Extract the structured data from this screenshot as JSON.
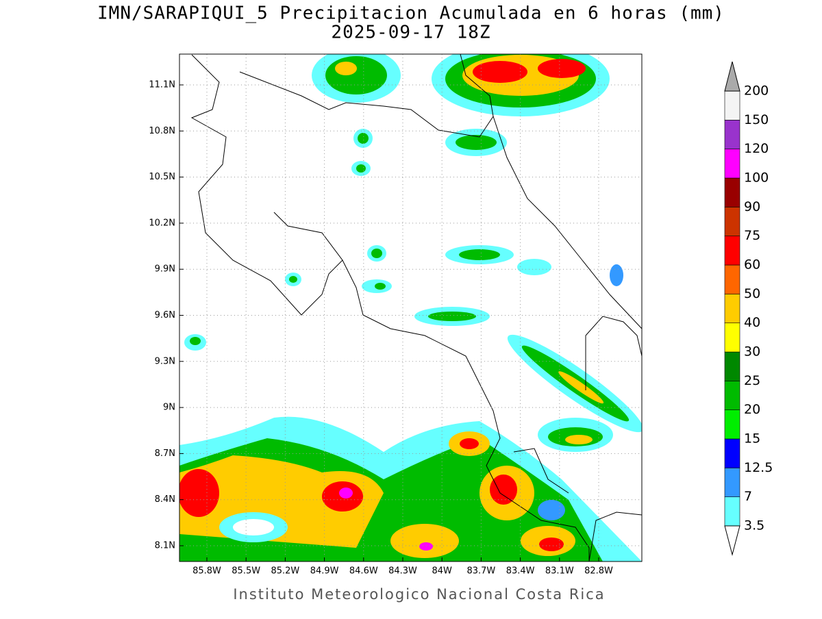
{
  "header": {
    "title": "IMN/SARAPIQUI_5 Precipitacion Acumulada en 6 horas (mm)",
    "subtitle": "2025-09-17 18Z"
  },
  "map": {
    "lat_labels": [
      "11.1N",
      "10.8N",
      "10.5N",
      "10.2N",
      "9.9N",
      "9.6N",
      "9.3N",
      "9N",
      "8.7N",
      "8.4N",
      "8.1N"
    ],
    "lon_labels": [
      "85.8W",
      "85.5W",
      "85.2W",
      "84.9W",
      "84.6W",
      "84.3W",
      "84W",
      "83.7W",
      "83.4W",
      "83.1W",
      "82.8W"
    ]
  },
  "colorbar": {
    "levels": [
      3.5,
      7,
      12.5,
      15,
      20,
      25,
      30,
      40,
      50,
      60,
      75,
      90,
      100,
      120,
      150,
      200
    ],
    "colors": [
      "#66ffff",
      "#3399ff",
      "#0000ff",
      "#00ee00",
      "#00bb00",
      "#008800",
      "#ffff00",
      "#ffcc00",
      "#ff6600",
      "#ff0000",
      "#cc3300",
      "#990000",
      "#ff00ff",
      "#9933cc",
      "#f4f4f4"
    ],
    "below_color": "#ffffff",
    "above_color": "#aaaaaa"
  },
  "footer": "Instituto Meteorologico Nacional Costa Rica"
}
